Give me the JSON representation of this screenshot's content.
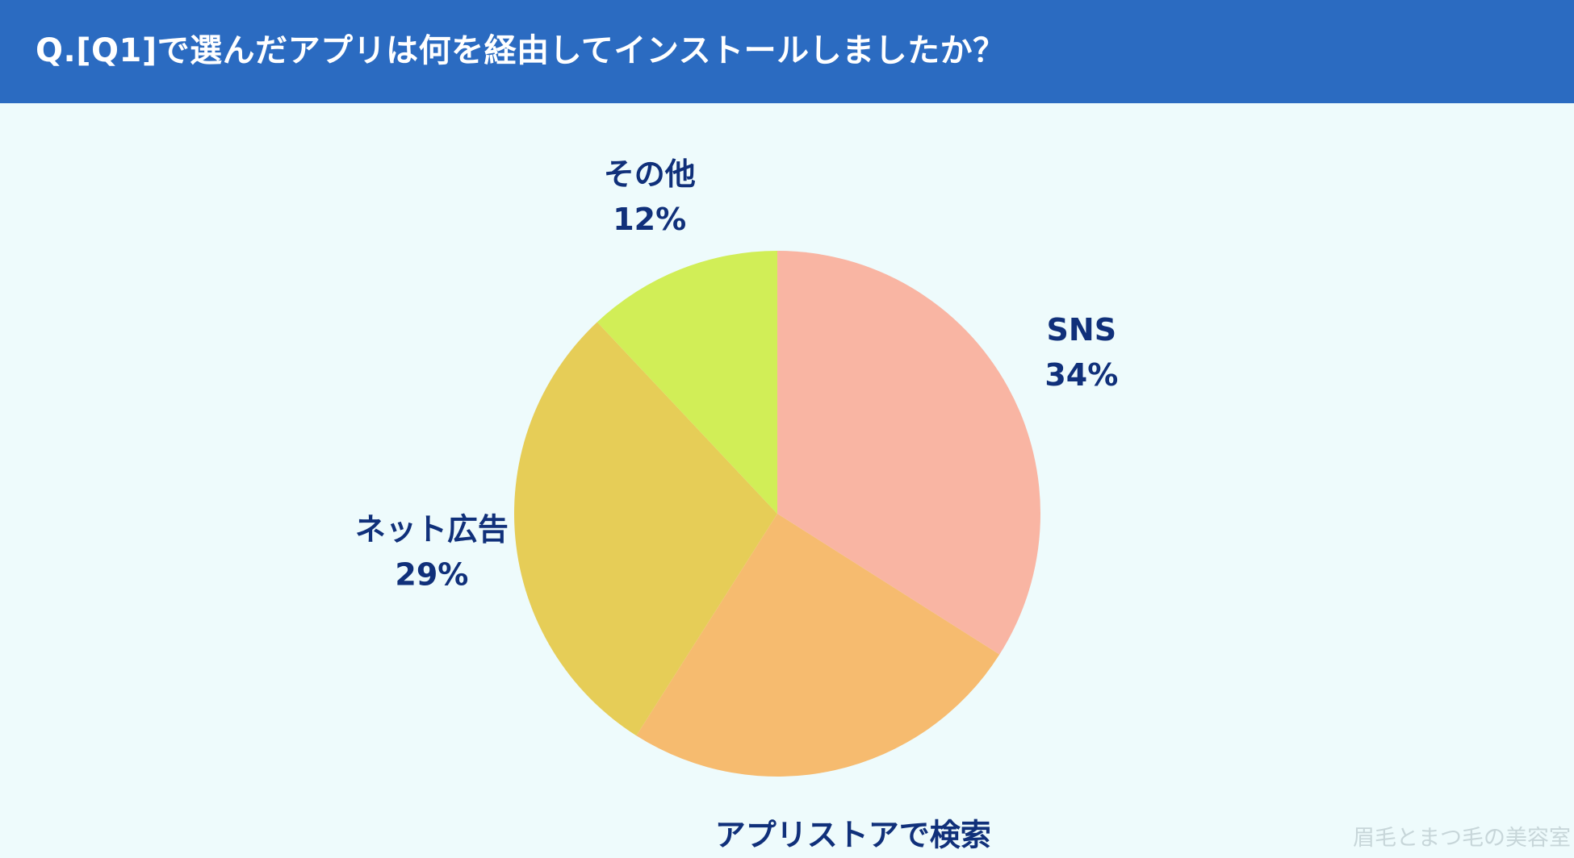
{
  "header": {
    "title": "Q.[Q1]で選んだアプリは何を経由してインストールしましたか？"
  },
  "chart_data": {
    "type": "pie",
    "title": "",
    "start": "12 o'clock",
    "direction": "clockwise",
    "slices": [
      {
        "label": "SNS",
        "value": 34,
        "percent_label": "34%",
        "color": "#f9b5a3"
      },
      {
        "label": "アプリストアで検索",
        "value": 25,
        "percent_label": "25%",
        "color": "#f6bb6f"
      },
      {
        "label": "ネット広告",
        "value": 29,
        "percent_label": "29%",
        "color": "#e6cd57"
      },
      {
        "label": "その他",
        "value": 12,
        "percent_label": "12%",
        "color": "#d1ee57"
      }
    ],
    "label_color": "#10307a"
  },
  "watermark": {
    "text": "眉毛とまつ毛の美容室"
  },
  "colors": {
    "header_bg": "#2b6bc1",
    "page_bg": "#eefbfc"
  }
}
